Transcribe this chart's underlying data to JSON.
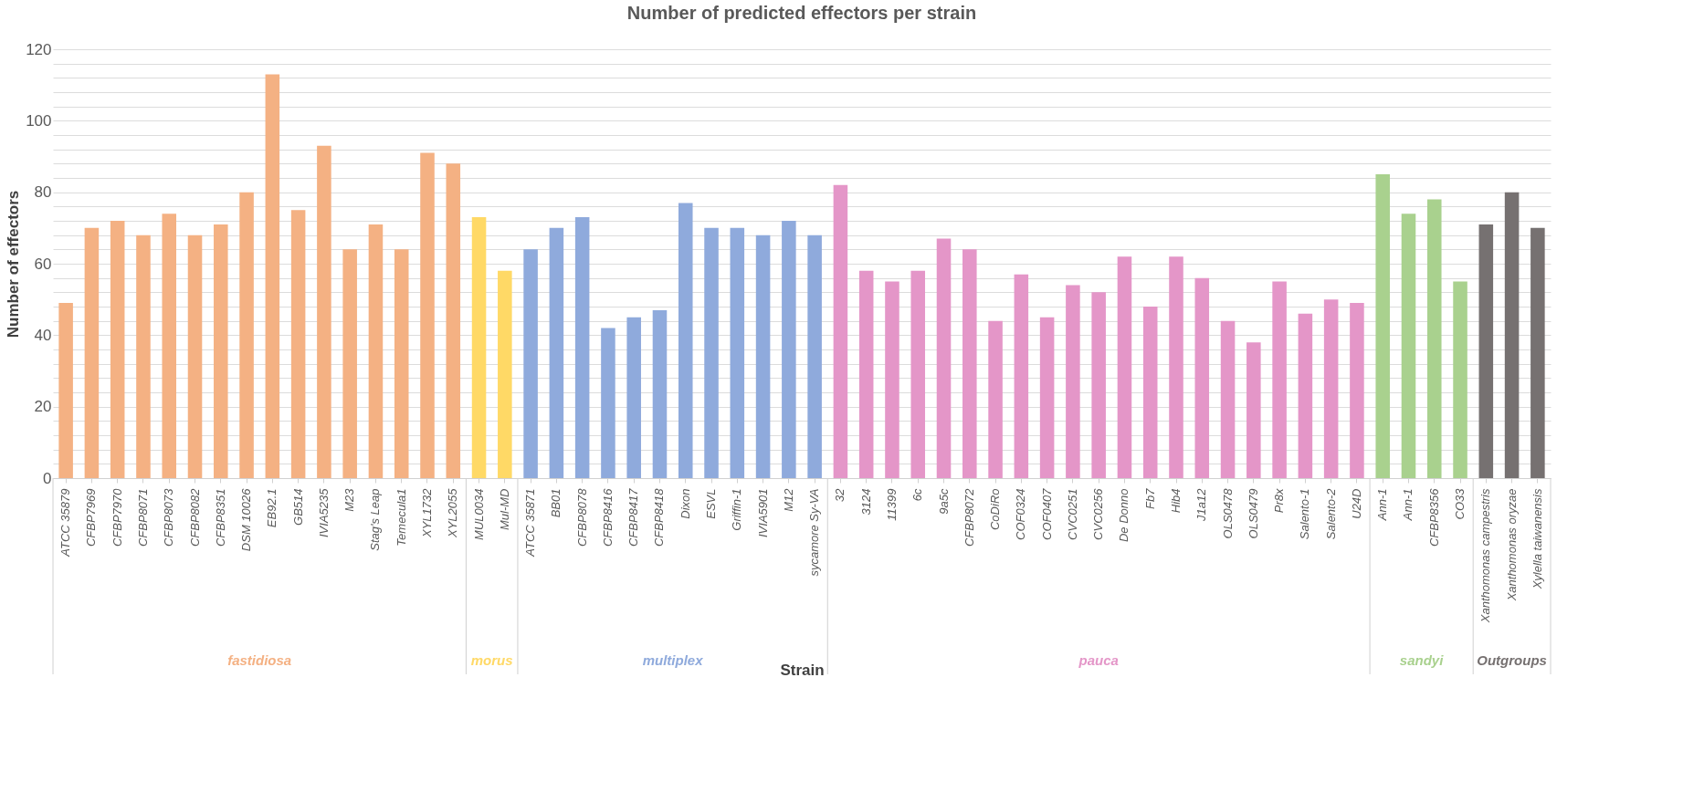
{
  "chart_data": {
    "type": "bar",
    "title": "Number of predicted effectors per strain",
    "xlabel": "Strain",
    "ylabel": "Number of effectors",
    "categories": [
      "ATCC 35879",
      "CFBP7969",
      "CFBP7970",
      "CFBP8071",
      "CFBP8073",
      "CFBP8082",
      "CFBP8351",
      "DSM 10026",
      "EB92.1",
      "GB514",
      "IVIA5235",
      "M23",
      "Stag's Leap",
      "Temecula1",
      "XYL1732",
      "XYL2055",
      "MUL0034",
      "Mul-MD",
      "ATCC 35871",
      "BB01",
      "CFBP8078",
      "CFBP8416",
      "CFBP8417",
      "CFBP8418",
      "Dixon",
      "ESVL",
      "Griffin-1",
      "IVIA5901",
      "M12",
      "sycamore Sy-VA",
      "32",
      "3124",
      "11399",
      "6c",
      "9a5c",
      "CFBP8072",
      "CoDiRo",
      "COF0324",
      "COF0407",
      "CVC0251",
      "CVC0256",
      "De Donno",
      "Fb7",
      "Hib4",
      "J1a12",
      "OLS0478",
      "OLS0479",
      "Pr8x",
      "Salento-1",
      "Salento-2",
      "U24D",
      "Ann-1",
      "Ann-1",
      "CFBP8356",
      "CO33",
      "Xanthomonas campestris",
      "Xanthomonas oryzae",
      "Xylella taiwanensis"
    ],
    "series": [
      {
        "name": "fastidiosa",
        "color": "#f4b183",
        "values": [
          49,
          70,
          72,
          68,
          74,
          68,
          71,
          80,
          113,
          75,
          93,
          64,
          71,
          64,
          91,
          88,
          null,
          null,
          null,
          null,
          null,
          null,
          null,
          null,
          null,
          null,
          null,
          null,
          null,
          null,
          null,
          null,
          null,
          null,
          null,
          null,
          null,
          null,
          null,
          null,
          null,
          null,
          null,
          null,
          null,
          null,
          null,
          null,
          null,
          null,
          null,
          null,
          null,
          null,
          null,
          null,
          null,
          null
        ]
      },
      {
        "name": "morus",
        "color": "#ffd966",
        "values": [
          null,
          null,
          null,
          null,
          null,
          null,
          null,
          null,
          null,
          null,
          null,
          null,
          null,
          null,
          null,
          null,
          73,
          58,
          null,
          null,
          null,
          null,
          null,
          null,
          null,
          null,
          null,
          null,
          null,
          null,
          null,
          null,
          null,
          null,
          null,
          null,
          null,
          null,
          null,
          null,
          null,
          null,
          null,
          null,
          null,
          null,
          null,
          null,
          null,
          null,
          null,
          null,
          null,
          null,
          null,
          null,
          null,
          null
        ]
      },
      {
        "name": "multiplex",
        "color": "#8faadc",
        "values": [
          null,
          null,
          null,
          null,
          null,
          null,
          null,
          null,
          null,
          null,
          null,
          null,
          null,
          null,
          null,
          null,
          null,
          null,
          64,
          70,
          73,
          42,
          45,
          47,
          77,
          70,
          70,
          68,
          72,
          68,
          null,
          null,
          null,
          null,
          null,
          null,
          null,
          null,
          null,
          null,
          null,
          null,
          null,
          null,
          null,
          null,
          null,
          null,
          null,
          null,
          null,
          null,
          null,
          null,
          null,
          null,
          null,
          null
        ]
      },
      {
        "name": "pauca",
        "color": "#e496c8",
        "values": [
          null,
          null,
          null,
          null,
          null,
          null,
          null,
          null,
          null,
          null,
          null,
          null,
          null,
          null,
          null,
          null,
          null,
          null,
          null,
          null,
          null,
          null,
          null,
          null,
          null,
          null,
          null,
          null,
          null,
          null,
          82,
          58,
          55,
          58,
          67,
          64,
          44,
          57,
          45,
          54,
          52,
          62,
          48,
          62,
          56,
          44,
          38,
          55,
          46,
          50,
          49,
          null,
          null,
          null,
          null,
          null,
          null,
          null
        ]
      },
      {
        "name": "sandyi",
        "color": "#a9d18e",
        "values": [
          null,
          null,
          null,
          null,
          null,
          null,
          null,
          null,
          null,
          null,
          null,
          null,
          null,
          null,
          null,
          null,
          null,
          null,
          null,
          null,
          null,
          null,
          null,
          null,
          null,
          null,
          null,
          null,
          null,
          null,
          null,
          null,
          null,
          null,
          null,
          null,
          null,
          null,
          null,
          null,
          null,
          null,
          null,
          null,
          null,
          null,
          null,
          null,
          null,
          null,
          null,
          85,
          74,
          78,
          55,
          null,
          null,
          null
        ]
      },
      {
        "name": "Outgroups",
        "color": "#767171",
        "values": [
          null,
          null,
          null,
          null,
          null,
          null,
          null,
          null,
          null,
          null,
          null,
          null,
          null,
          null,
          null,
          null,
          null,
          null,
          null,
          null,
          null,
          null,
          null,
          null,
          null,
          null,
          null,
          null,
          null,
          null,
          null,
          null,
          null,
          null,
          null,
          null,
          null,
          null,
          null,
          null,
          null,
          null,
          null,
          null,
          null,
          null,
          null,
          null,
          null,
          null,
          null,
          null,
          null,
          null,
          null,
          71,
          80,
          70
        ]
      }
    ],
    "ylim": [
      0,
      120
    ],
    "yticks": [
      0,
      {
        "value": 4,
        "label": null
      },
      {
        "value": 8,
        "label": null
      },
      {
        "value": 12,
        "label": null
      },
      {
        "value": 16,
        "label": null
      },
      20,
      {
        "value": 24,
        "label": null
      },
      {
        "value": 28,
        "label": null
      },
      {
        "value": 32,
        "label": null
      },
      {
        "value": 36,
        "label": null
      },
      40,
      {
        "value": 44,
        "label": null
      },
      {
        "value": 48,
        "label": null
      },
      {
        "value": 52,
        "label": null
      },
      {
        "value": 56,
        "label": null
      },
      60,
      {
        "value": 64,
        "label": null
      },
      {
        "value": 68,
        "label": null
      },
      {
        "value": 72,
        "label": null
      },
      {
        "value": 76,
        "label": null
      },
      80,
      {
        "value": 84,
        "label": null
      },
      {
        "value": 88,
        "label": null
      },
      {
        "value": 92,
        "label": null
      },
      {
        "value": 96,
        "label": null
      },
      100,
      {
        "value": 104,
        "label": null
      },
      {
        "value": 108,
        "label": null
      },
      {
        "value": 112,
        "label": null
      },
      {
        "value": 116,
        "label": null
      },
      120
    ],
    "grid": "y"
  }
}
